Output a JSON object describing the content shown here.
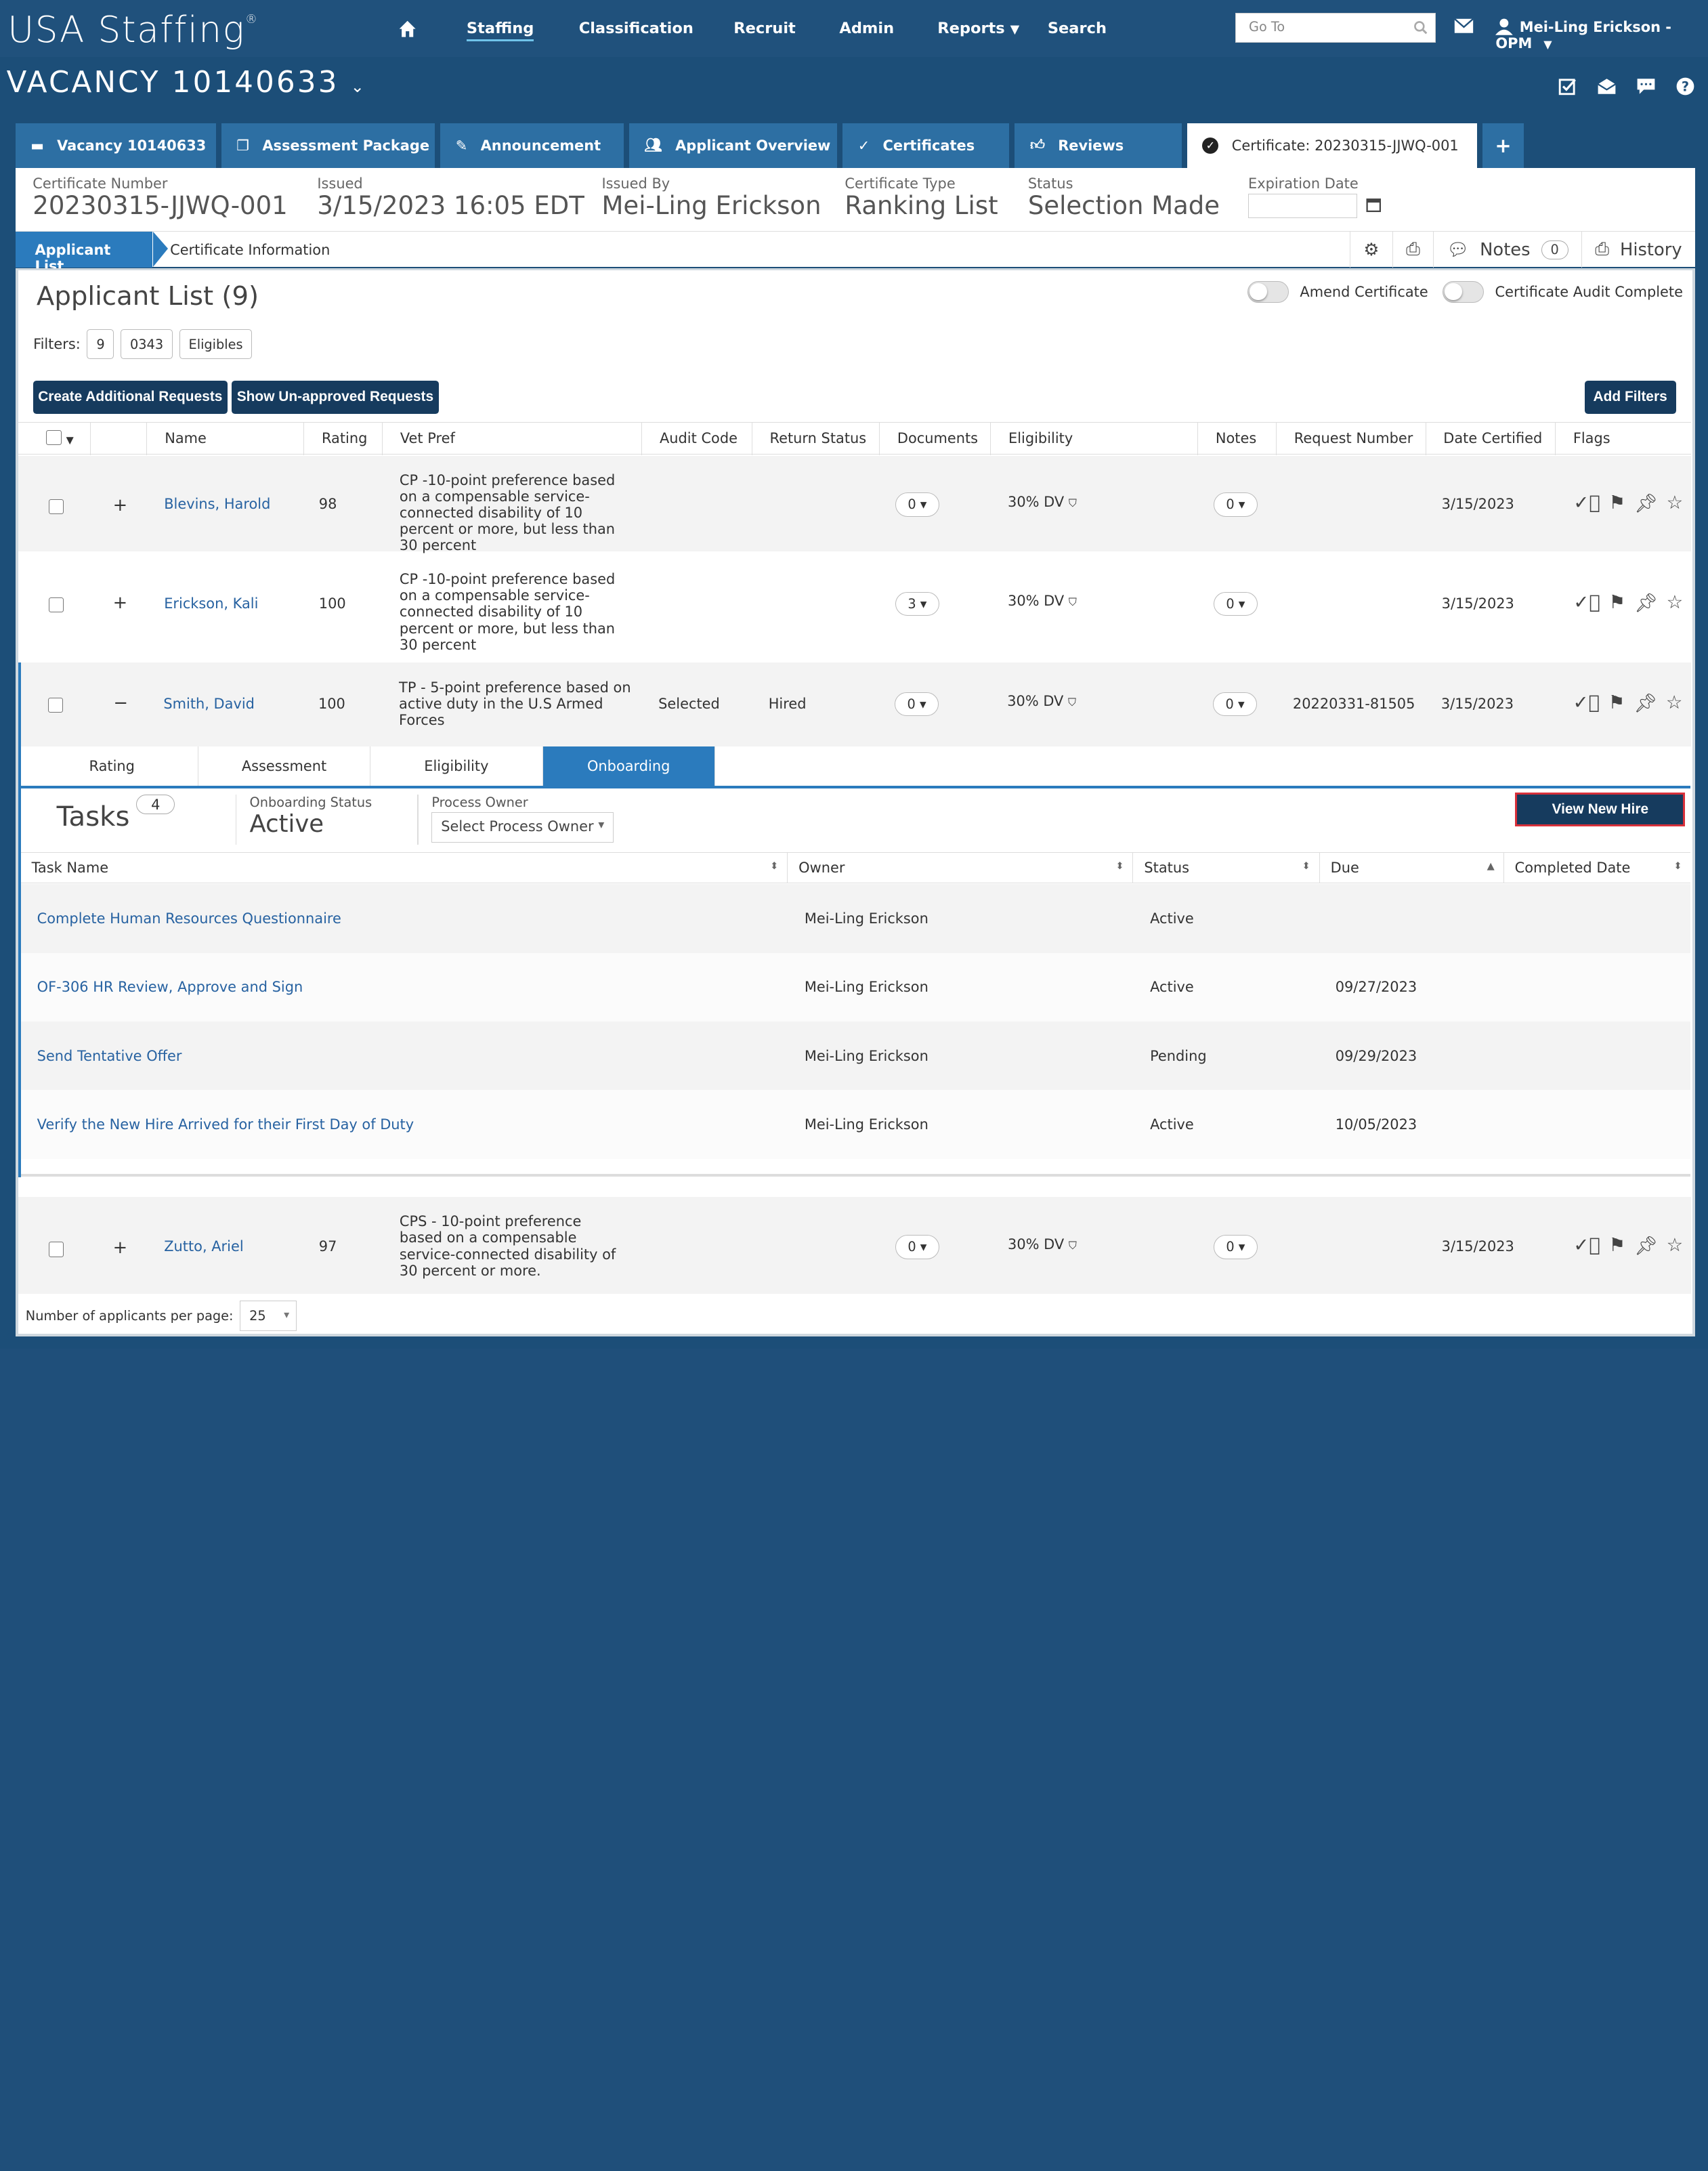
{
  "topnav": {
    "brand": "USA Staffing",
    "brand_mark": "®",
    "items": [
      "Staffing",
      "Classification",
      "Recruit",
      "Admin",
      "Reports",
      "Search"
    ],
    "goto_placeholder": "Go To",
    "user": "Mei-Ling Erickson - OPM"
  },
  "vacancy": {
    "title": "VACANCY 10140633"
  },
  "tabs": [
    {
      "label": "Vacancy 10140633",
      "icon": "folder-icon"
    },
    {
      "label": "Assessment Package",
      "icon": "documents-icon"
    },
    {
      "label": "Announcement",
      "icon": "megaphone-icon"
    },
    {
      "label": "Applicant Overview",
      "icon": "users-icon"
    },
    {
      "label": "Certificates",
      "icon": "check-circle-icon"
    },
    {
      "label": "Reviews",
      "icon": "thumbs-up-icon"
    },
    {
      "label": "Certificate: 20230315-JJWQ-001",
      "icon": "check-badge-icon"
    }
  ],
  "certificate": {
    "number_label": "Certificate Number",
    "number": "20230315-JJWQ-001",
    "issued_label": "Issued",
    "issued": "3/15/2023 16:05 EDT",
    "issued_by_label": "Issued By",
    "issued_by": "Mei-Ling Erickson",
    "type_label": "Certificate Type",
    "type": "Ranking List",
    "status_label": "Status",
    "status": "Selection Made",
    "expiration_label": "Expiration Date",
    "expiration": ""
  },
  "subtabs": {
    "active": "Applicant List",
    "inactive": "Certificate Information",
    "notes_label": "Notes",
    "notes_count": "0",
    "history_label": "History"
  },
  "panel": {
    "title": "Applicant List (9)",
    "amend_label": "Amend Certificate",
    "audit_label": "Certificate Audit Complete",
    "filters_label": "Filters:",
    "filters": [
      "9",
      "0343",
      "Eligibles"
    ],
    "btn_additional": "Create Additional Requests",
    "btn_unapproved": "Show Un-approved Requests",
    "btn_add_filters": "Add Filters"
  },
  "columns": [
    "Name",
    "Rating",
    "Vet Pref",
    "Audit Code",
    "Return Status",
    "Documents",
    "Eligibility",
    "Notes",
    "Request Number",
    "Date Certified",
    "Flags"
  ],
  "applicants": [
    {
      "expand": "+",
      "name": "Blevins, Harold",
      "rating": "98",
      "vetpref": "CP -10-point preference based on a compensable service-connected disability of 10 percent or more, but less than 30 percent",
      "audit": "",
      "return": "",
      "documents": "0 ▾",
      "eligibility": "30% DV",
      "notes": "0 ▾",
      "request": "",
      "date": "3/15/2023"
    },
    {
      "expand": "+",
      "name": "Erickson, Kali",
      "rating": "100",
      "vetpref": "CP -10-point preference based on a compensable service-connected disability of 10 percent or more, but less than 30 percent",
      "audit": "",
      "return": "",
      "documents": "3 ▾",
      "eligibility": "30% DV",
      "notes": "0 ▾",
      "request": "",
      "date": "3/15/2023"
    },
    {
      "expand": "−",
      "name": "Smith, David",
      "rating": "100",
      "vetpref": "TP - 5-point preference based on active duty in the U.S Armed Forces",
      "audit": "Selected",
      "return": "Hired",
      "documents": "0 ▾",
      "eligibility": "30% DV",
      "notes": "0 ▾",
      "request": "20220331-81505",
      "date": "3/15/2023"
    },
    {
      "expand": "+",
      "name": "Zutto, Ariel",
      "rating": "97",
      "vetpref": "CPS - 10-point preference based on a compensable service-connected disability of 30 percent or more.",
      "audit": "",
      "return": "",
      "documents": "0 ▾",
      "eligibility": "30% DV",
      "notes": "0 ▾",
      "request": "",
      "date": "3/15/2023"
    }
  ],
  "expanded": {
    "tabs": [
      "Rating",
      "Assessment",
      "Eligibility",
      "Onboarding"
    ],
    "active_tab": "Onboarding",
    "tasks_label": "Tasks",
    "tasks_count": "4",
    "onboarding_status_label": "Onboarding Status",
    "onboarding_status": "Active",
    "process_owner_label": "Process Owner",
    "process_owner_placeholder": "Select Process Owner",
    "view_new_hire": "View New Hire",
    "task_columns": [
      "Task Name",
      "Owner",
      "Status",
      "Due",
      "Completed Date"
    ],
    "tasks": [
      {
        "name": "Complete Human Resources Questionnaire",
        "owner": "Mei-Ling Erickson",
        "status": "Active",
        "due": "",
        "completed": ""
      },
      {
        "name": "OF-306 HR Review, Approve and Sign",
        "owner": "Mei-Ling Erickson",
        "status": "Active",
        "due": "09/27/2023",
        "completed": ""
      },
      {
        "name": "Send Tentative Offer",
        "owner": "Mei-Ling Erickson",
        "status": "Pending",
        "due": "09/29/2023",
        "completed": ""
      },
      {
        "name": "Verify the New Hire Arrived for their First Day of Duty",
        "owner": "Mei-Ling Erickson",
        "status": "Active",
        "due": "10/05/2023",
        "completed": ""
      }
    ]
  },
  "pagination": {
    "label": "Number of applicants per page:",
    "value": "25"
  },
  "colors": {
    "nav": "#20517c",
    "accent": "#2b7bbd",
    "dark_button": "#163b5e",
    "highlight": "#d8303a"
  }
}
